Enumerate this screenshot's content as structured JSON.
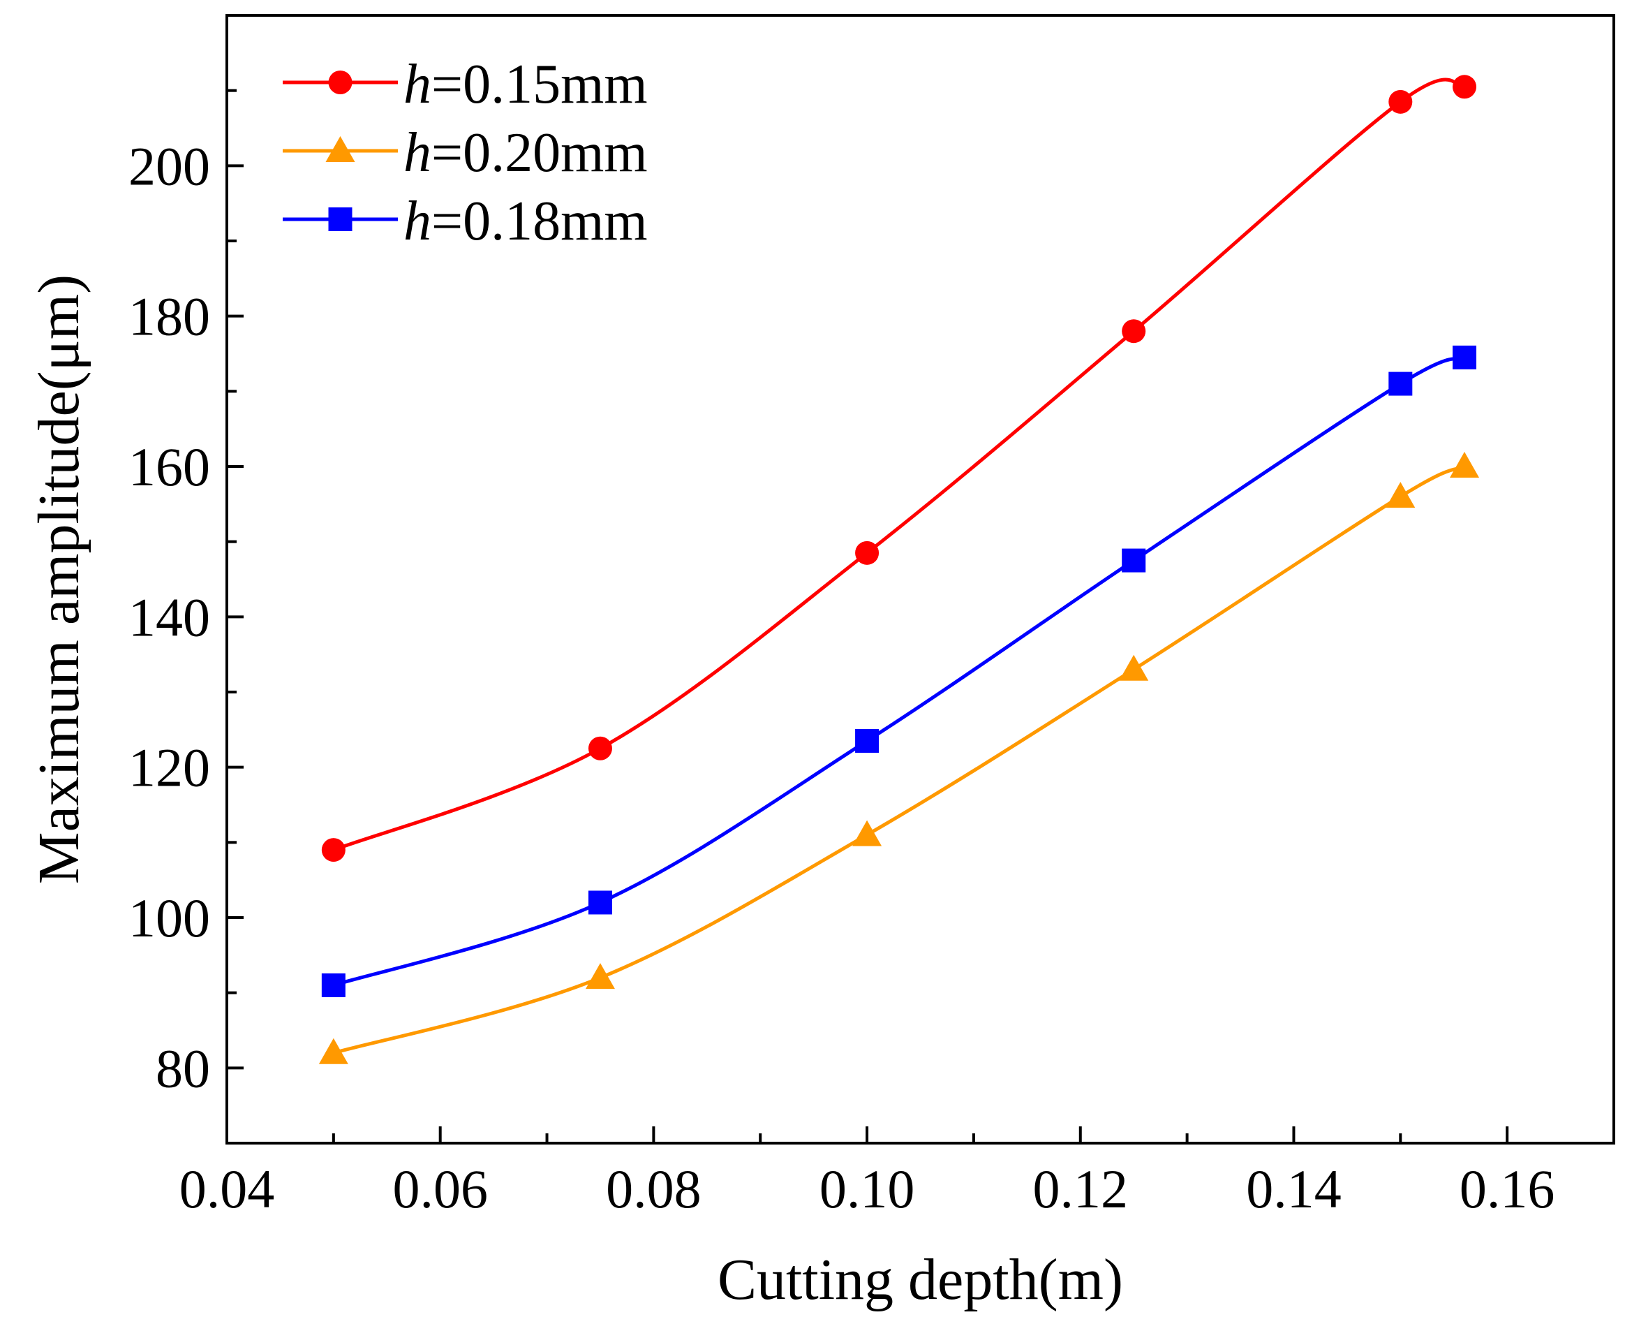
{
  "chart_data": {
    "type": "line",
    "title": "",
    "xlabel": "Cutting depth(m)",
    "ylabel": "Maximum amplitude(μm)",
    "xlim": [
      0.04,
      0.17
    ],
    "ylim": [
      70,
      220
    ],
    "xticks": [
      0.04,
      0.06,
      0.08,
      0.1,
      0.12,
      0.14,
      0.16
    ],
    "xtick_labels": [
      "0.04",
      "0.06",
      "0.08",
      "0.10",
      "0.12",
      "0.14",
      "0.16"
    ],
    "yticks": [
      80,
      100,
      120,
      140,
      160,
      180,
      200
    ],
    "ytick_labels": [
      "80",
      "100",
      "120",
      "140",
      "160",
      "180",
      "200"
    ],
    "legend_position": "top-left",
    "series": [
      {
        "name": "h=0.15mm",
        "legend_italic": "h",
        "legend_rest": "=0.15mm",
        "color": "#ff0000",
        "marker": "circle",
        "x": [
          0.05,
          0.075,
          0.1,
          0.125,
          0.15,
          0.156
        ],
        "y": [
          109,
          122.5,
          148.5,
          178,
          208.5,
          210.5
        ]
      },
      {
        "name": "h=0.20mm",
        "legend_italic": "h",
        "legend_rest": "=0.20mm",
        "color": "#ff9900",
        "marker": "triangle",
        "x": [
          0.05,
          0.075,
          0.1,
          0.125,
          0.15,
          0.156
        ],
        "y": [
          82,
          92,
          111,
          133,
          156,
          160
        ]
      },
      {
        "name": "h=0.18mm",
        "legend_italic": "h",
        "legend_rest": "=0.18mm",
        "color": "#0000ff",
        "marker": "square",
        "x": [
          0.05,
          0.075,
          0.1,
          0.125,
          0.15,
          0.156
        ],
        "y": [
          91,
          102,
          123.5,
          147.5,
          171,
          174.5
        ]
      }
    ]
  }
}
